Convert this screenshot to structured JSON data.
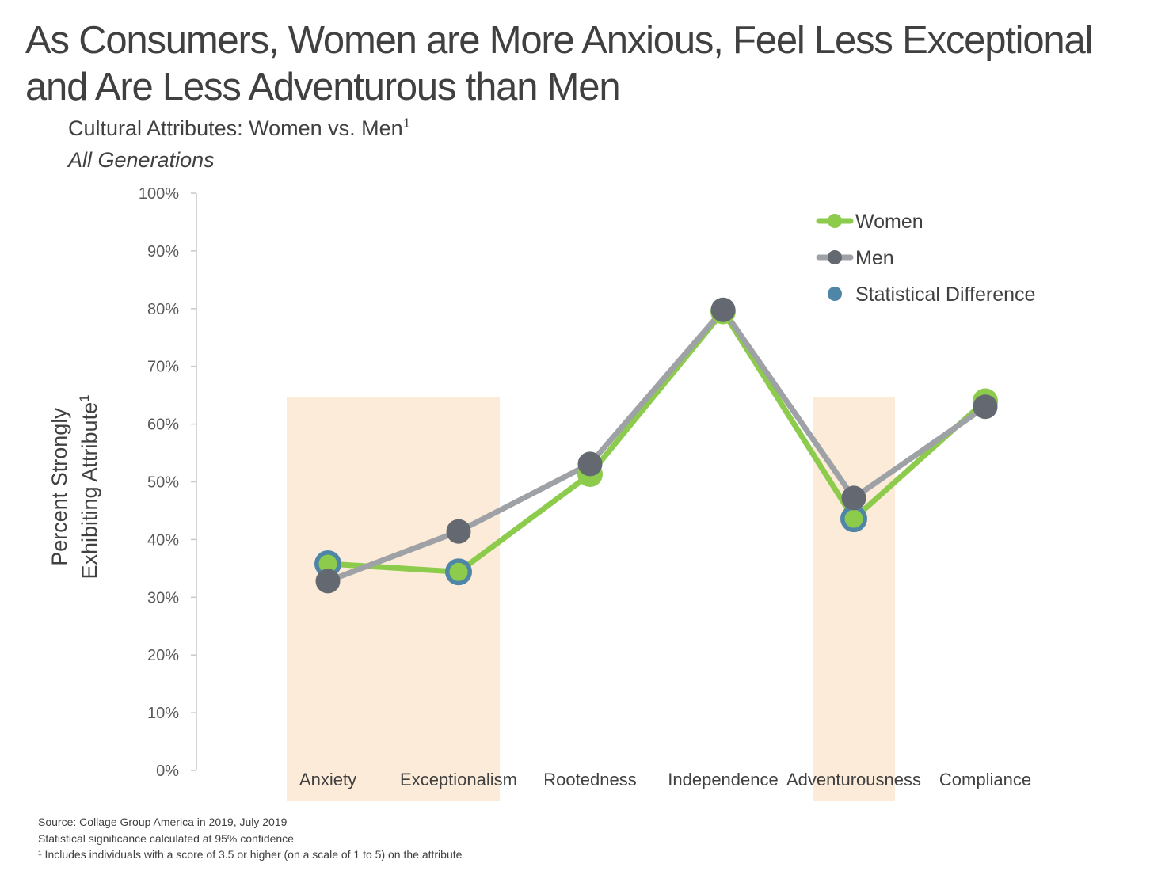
{
  "title": {
    "line1": "As Consumers, Women are More Anxious, Feel Less Exceptional",
    "line2": "and Are Less Adventurous than Men"
  },
  "subtitle": "Cultural Attributes: Women vs. Men",
  "subtitle_sup": "1",
  "subtitle2": "All Generations",
  "footnotes": {
    "source": "Source: Collage Group America in 2019, July 2019",
    "significance": "Statistical significance calculated at 95% confidence",
    "note": "¹ Includes individuals with a score of 3.5 or higher (on a scale of 1 to 5) on the attribute"
  },
  "chart_data": {
    "type": "line",
    "ylabel_line1": "Percent Strongly",
    "ylabel_line2": "Exhibiting Attribute",
    "ylabel_sup": "1",
    "ylim": [
      0,
      100
    ],
    "yticks": [
      0,
      10,
      20,
      30,
      40,
      50,
      60,
      70,
      80,
      90,
      100
    ],
    "ytick_labels": [
      "0%",
      "10%",
      "20%",
      "30%",
      "40%",
      "50%",
      "60%",
      "70%",
      "80%",
      "90%",
      "100%"
    ],
    "categories": [
      "Anxiety",
      "Exceptionalism",
      "Rootedness",
      "Independence",
      "Adventurousness",
      "Compliance"
    ],
    "series": [
      {
        "name": "Women",
        "color": "#8CCB4B",
        "values": [
          35.8,
          34.4,
          51.3,
          79.5,
          43.6,
          64.0
        ]
      },
      {
        "name": "Men",
        "color": "#9EA1A6",
        "marker_color": "#646971",
        "values": [
          32.8,
          41.4,
          53.1,
          79.8,
          47.2,
          63.0
        ]
      }
    ],
    "statistical_difference": {
      "label": "Statistical Difference",
      "color": "#4F86A8",
      "series": "Women",
      "categories": [
        "Anxiety",
        "Exceptionalism",
        "Adventurousness"
      ]
    },
    "highlight_bands": [
      [
        "Anxiety",
        "Exceptionalism"
      ],
      [
        "Adventurousness"
      ]
    ],
    "highlight_color": "#FCEBD8",
    "legend_position": "top-right",
    "grid": false
  }
}
